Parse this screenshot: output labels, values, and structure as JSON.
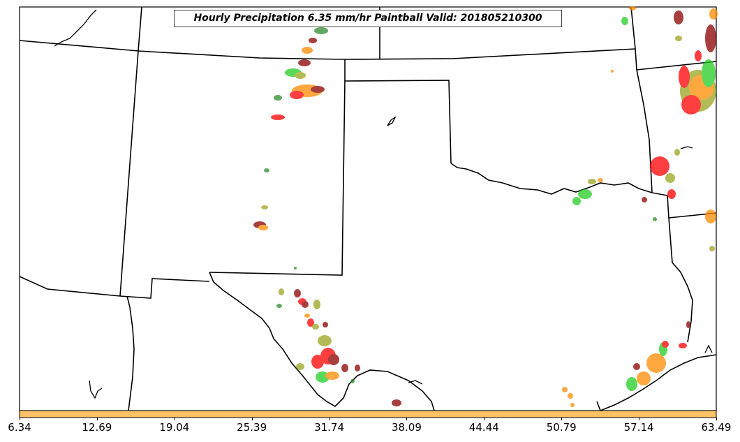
{
  "title": "Hourly Precipitation 6.35 mm/hr Paintball Valid: 201805210300",
  "colorbar": {
    "fill_color": "#ffc266",
    "tick_labels": [
      "6.34",
      "12.69",
      "19.04",
      "25.39",
      "31.74",
      "38.09",
      "44.44",
      "50.79",
      "57.14",
      "63.49"
    ]
  },
  "map": {
    "region": "Southern Plains / Texas",
    "land_color": "#ffffff",
    "border_color": "#000000",
    "storm_colors": [
      "#ff0000",
      "#ff8c00",
      "#22cc22",
      "#8b0000",
      "#9aa51f",
      "#2e8b2e"
    ]
  }
}
